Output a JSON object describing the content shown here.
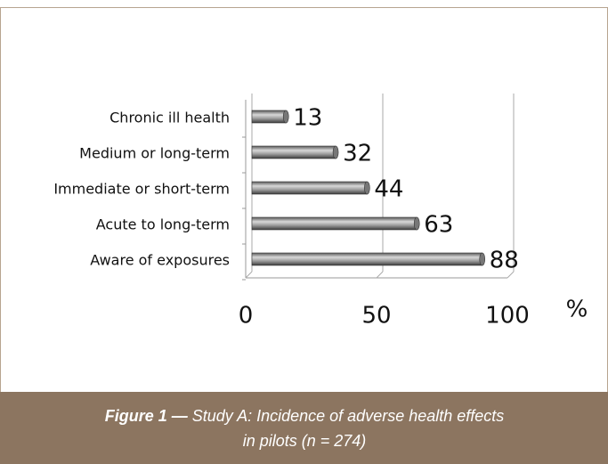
{
  "chart_data": {
    "type": "bar",
    "orientation": "horizontal",
    "categories": [
      "Chronic ill health",
      "Medium or long-term",
      "Immediate or short-term",
      "Acute to long-term",
      "Aware of exposures"
    ],
    "values": [
      13,
      32,
      44,
      63,
      88
    ],
    "color": "#8a8a8a",
    "xlim": [
      0,
      100
    ],
    "xticks": [
      0,
      50,
      100
    ],
    "x_label": "%",
    "grid": true,
    "caption_label": "Figure 1 —",
    "caption_lines": [
      "Study A: Incidence of adverse health effects",
      "in pilots  (n = 274)"
    ]
  }
}
